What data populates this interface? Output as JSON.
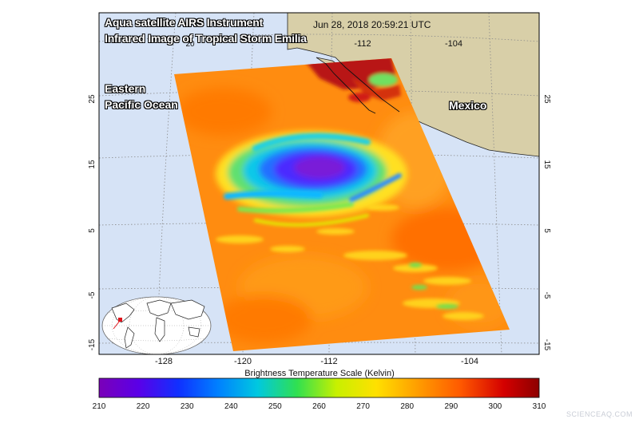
{
  "title_line1": "Aqua satellite AIRS Instrument",
  "title_line2": "Infrared Image of Tropical Storm Emilia",
  "timestamp": "Jun 28, 2018 20:59:21 UTC",
  "regions": {
    "ocean_line1": "Eastern",
    "ocean_line2": "Pacific Ocean",
    "land": "Mexico"
  },
  "longitude_ticks_top": [
    "-112",
    "-104"
  ],
  "longitude_ticks_bottom": [
    "-128",
    "-120",
    "-112",
    "-104"
  ],
  "latitude_ticks_left": [
    "25",
    "15",
    "5",
    "-5",
    "-15"
  ],
  "latitude_ticks_right": [
    "25",
    "15",
    "5",
    "-5",
    "-15"
  ],
  "top_lat_label": "20",
  "scale": {
    "title": "Brightness Temperature Scale (Kelvin)",
    "ticks": [
      "210",
      "220",
      "230",
      "240",
      "250",
      "260",
      "270",
      "280",
      "290",
      "300",
      "310"
    ],
    "colors": [
      "#7a00b8",
      "#5a00e8",
      "#1030ff",
      "#0080ff",
      "#00c8e0",
      "#30e050",
      "#c8f000",
      "#ffe000",
      "#ffa000",
      "#ff5a00",
      "#d40000",
      "#8c0000"
    ]
  },
  "colors": {
    "ocean": "#d6e3f6",
    "land": "#d8cfa8",
    "swath_base": "#ff8c10",
    "storm_core": "#4b2bff",
    "hot": "#b81818"
  },
  "credit": "SCIENCEAQ.COM"
}
